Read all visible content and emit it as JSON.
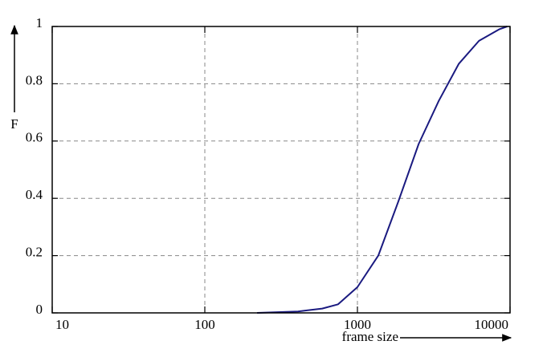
{
  "chart_data": {
    "type": "line",
    "x_label": "frame size",
    "y_label": "F",
    "x": [
      220,
      408,
      588,
      747,
      1000,
      1370,
      1857,
      2520,
      3410,
      4620,
      6260,
      8480,
      9570
    ],
    "series": [
      {
        "color": "#1a1a80",
        "values": [
          0,
          0.005,
          0.015,
          0.03,
          0.09,
          0.2,
          0.39,
          0.59,
          0.74,
          0.87,
          0.95,
          0.99,
          1.0
        ]
      }
    ],
    "xlim": [
      10,
      10000
    ],
    "xticks": [
      10,
      100,
      1000,
      10000
    ],
    "xscale": "log",
    "ylim": [
      0,
      1
    ],
    "yticks": [
      0,
      0.2,
      0.4,
      0.6,
      0.8,
      1
    ],
    "grid": true
  }
}
